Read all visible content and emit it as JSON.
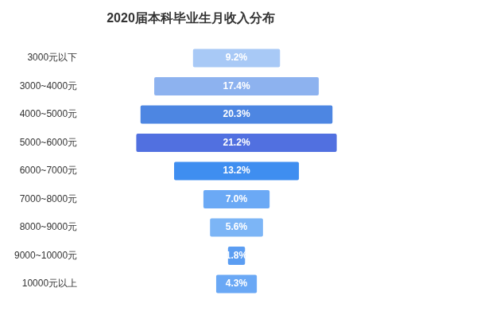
{
  "chart_data": {
    "type": "bar",
    "orientation": "horizontal",
    "title": "2020届本科毕业生月收入分布",
    "categories": [
      "3000元以下",
      "3000~4000元",
      "4000~5000元",
      "5000~6000元",
      "6000~7000元",
      "7000~8000元",
      "8000~9000元",
      "9000~10000元",
      "10000元以上"
    ],
    "values": [
      9.2,
      17.4,
      20.3,
      21.2,
      13.2,
      7.0,
      5.6,
      1.8,
      4.3
    ],
    "value_labels": [
      "9.2%",
      "17.4%",
      "20.3%",
      "21.2%",
      "13.2%",
      "7.0%",
      "5.6%",
      "1.8%",
      "4.3%"
    ],
    "colors": [
      "#a8c9f6",
      "#8db2ef",
      "#4d86e2",
      "#5170e0",
      "#3f8ef0",
      "#6ba9f5",
      "#7cb5f6",
      "#5b9df2",
      "#6aa8f5"
    ],
    "data_labels": true,
    "grid": false,
    "tick_labels": "y"
  }
}
